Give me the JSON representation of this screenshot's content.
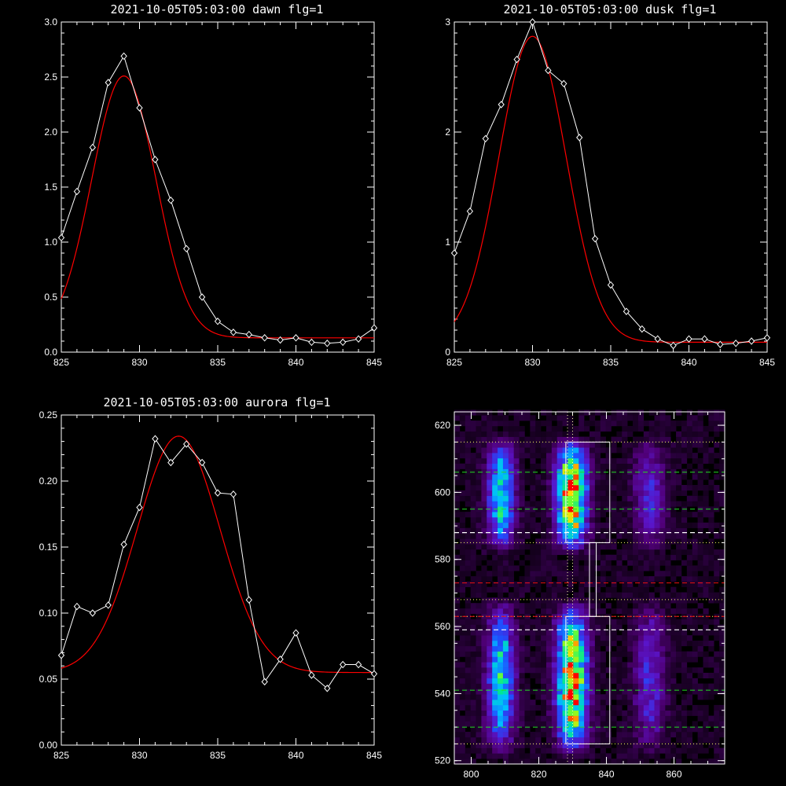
{
  "chart_data": [
    {
      "type": "line",
      "title": "2021-10-05T05:03:00 dawn flg=1",
      "xlim": [
        825,
        845
      ],
      "ylim": [
        0,
        3.0
      ],
      "xticks": [
        825,
        830,
        835,
        840,
        845
      ],
      "xtick_labels": [
        "825",
        "830",
        "835",
        "840",
        "845"
      ],
      "yticks": [
        0,
        0.5,
        1.0,
        1.5,
        2.0,
        2.5,
        3.0
      ],
      "ytick_labels": [
        "0.0",
        "0.5",
        "1.0",
        "1.5",
        "2.0",
        "2.5",
        "3.0"
      ],
      "series": [
        {
          "color": "#ffffff",
          "marker": "diamond",
          "x": [
            825,
            826,
            827,
            828,
            829,
            830,
            831,
            832,
            833,
            834,
            835,
            836,
            837,
            838,
            839,
            840,
            841,
            842,
            843,
            844,
            845
          ],
          "y": [
            1.04,
            1.46,
            1.86,
            2.45,
            2.69,
            2.22,
            1.75,
            1.38,
            0.94,
            0.5,
            0.28,
            0.18,
            0.16,
            0.13,
            0.11,
            0.13,
            0.09,
            0.08,
            0.09,
            0.12,
            0.22
          ]
        },
        {
          "color": "#ff0000",
          "fit": {
            "amplitude": 2.38,
            "center": 829.0,
            "sigma": 2.05,
            "baseline": 0.13
          }
        }
      ]
    },
    {
      "type": "line",
      "title": "2021-10-05T05:03:00 dusk flg=1",
      "xlim": [
        825,
        845
      ],
      "ylim": [
        0,
        3
      ],
      "xticks": [
        825,
        830,
        835,
        840,
        845
      ],
      "xtick_labels": [
        "825",
        "830",
        "835",
        "840",
        "845"
      ],
      "yticks": [
        0,
        1,
        2,
        3
      ],
      "ytick_labels": [
        "0",
        "1",
        "2",
        "3"
      ],
      "series": [
        {
          "color": "#ffffff",
          "marker": "diamond",
          "x": [
            825,
            826,
            827,
            828,
            829,
            830,
            831,
            832,
            833,
            834,
            835,
            836,
            837,
            838,
            839,
            840,
            841,
            842,
            843,
            844,
            845
          ],
          "y": [
            0.9,
            1.28,
            1.94,
            2.25,
            2.66,
            3.0,
            2.56,
            2.44,
            1.95,
            1.03,
            0.61,
            0.37,
            0.21,
            0.12,
            0.06,
            0.12,
            0.12,
            0.07,
            0.08,
            0.1,
            0.13
          ]
        },
        {
          "color": "#ff0000",
          "fit": {
            "amplitude": 2.78,
            "center": 830.0,
            "sigma": 2.15,
            "baseline": 0.09
          }
        }
      ]
    },
    {
      "type": "line",
      "title": "2021-10-05T05:03:00 aurora flg=1",
      "xlim": [
        825,
        845
      ],
      "ylim": [
        0,
        0.25
      ],
      "xticks": [
        825,
        830,
        835,
        840,
        845
      ],
      "xtick_labels": [
        "825",
        "830",
        "835",
        "840",
        "845"
      ],
      "yticks": [
        0,
        0.05,
        0.1,
        0.15,
        0.2,
        0.25
      ],
      "ytick_labels": [
        "0.00",
        "0.05",
        "0.10",
        "0.15",
        "0.20",
        "0.25"
      ],
      "series": [
        {
          "color": "#ffffff",
          "marker": "diamond",
          "x": [
            825,
            826,
            827,
            828,
            829,
            830,
            831,
            832,
            833,
            834,
            835,
            836,
            837,
            838,
            839,
            840,
            841,
            842,
            843,
            844,
            845
          ],
          "y": [
            0.068,
            0.105,
            0.1,
            0.106,
            0.152,
            0.18,
            0.232,
            0.214,
            0.228,
            0.214,
            0.191,
            0.19,
            0.11,
            0.048,
            0.065,
            0.085,
            0.053,
            0.043,
            0.061,
            0.061,
            0.054
          ]
        },
        {
          "color": "#ff0000",
          "fit": {
            "amplitude": 0.179,
            "center": 832.5,
            "sigma": 2.65,
            "baseline": 0.055
          }
        }
      ]
    },
    {
      "type": "heatmap",
      "xlim": [
        795,
        875
      ],
      "ylim": [
        519,
        624
      ],
      "xticks": [
        800,
        820,
        840,
        860
      ],
      "xtick_labels": [
        "800",
        "820",
        "840",
        "860"
      ],
      "yticks": [
        520,
        540,
        560,
        580,
        600,
        620
      ],
      "ytick_labels": [
        "520",
        "540",
        "560",
        "580",
        "600",
        "620"
      ],
      "bright_columns": [
        {
          "x": 808,
          "width": 7
        },
        {
          "x": 829,
          "width": 8
        },
        {
          "x": 852,
          "width": 8
        }
      ],
      "bright_bands": [
        [
          585,
          612
        ],
        [
          526,
          562
        ]
      ],
      "reference_lines": {
        "vertical_dotted": [
          828.5,
          830.0
        ],
        "horizontal_dotted": [
          615,
          585,
          568,
          563,
          525
        ],
        "green_dashed": [
          606,
          595,
          541,
          530
        ],
        "white_dashed": [
          588,
          559
        ],
        "red_dashed": [
          573,
          563
        ]
      },
      "boxes": [
        {
          "x": [
            828,
            841
          ],
          "y": [
            585,
            615
          ]
        },
        {
          "x": [
            828,
            841
          ],
          "y": [
            525,
            563
          ]
        },
        {
          "x": [
            835,
            837
          ],
          "y": [
            563,
            585
          ]
        }
      ]
    }
  ]
}
